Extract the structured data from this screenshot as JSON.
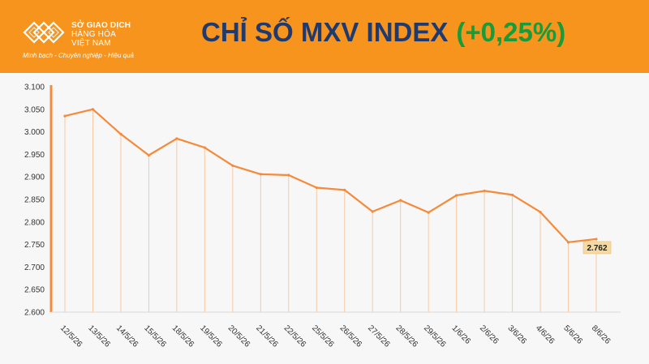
{
  "brand": {
    "name_line1": "SỞ GIAO DỊCH",
    "name_line2": "HÀNG HÓA",
    "name_line3": "VIỆT NAM",
    "slogan": "Minh bạch - Chuyên nghiệp - Hiệu quả",
    "logo_icon": "mxv-logo-icon"
  },
  "header": {
    "title": "CHỈ SỐ MXV INDEX",
    "change": "(+0,25%)",
    "bg_color": "#f7941d",
    "title_color": "#1f3a6e",
    "change_color": "#1a9b3a"
  },
  "chart_data": {
    "type": "line",
    "title": "CHỈ SỐ MXV INDEX (+0,25%)",
    "xlabel": "",
    "ylabel": "",
    "categories": [
      "12/5/26",
      "13/5/26",
      "14/5/26",
      "15/5/26",
      "18/5/26",
      "19/5/26",
      "20/5/26",
      "21/5/26",
      "22/5/26",
      "25/5/26",
      "26/5/26",
      "27/5/26",
      "28/5/26",
      "29/5/26",
      "1/6/26",
      "2/6/26",
      "3/6/26",
      "4/6/26",
      "5/6/26",
      "8/6/26"
    ],
    "series": [
      {
        "values": [
          3035,
          3050,
          2995,
          2948,
          2985,
          2965,
          2925,
          2906,
          2904,
          2876,
          2871,
          2823,
          2848,
          2821,
          2859,
          2869,
          2860,
          2822,
          2755,
          2762
        ],
        "color": "#f58a3a"
      }
    ],
    "ylim": [
      2600,
      3100
    ],
    "yticks": [
      "2.600",
      "2.650",
      "2.700",
      "2.750",
      "2.800",
      "2.850",
      "2.900",
      "2.950",
      "3.000",
      "3.050",
      "3.100"
    ],
    "ytick_values": [
      2600,
      2650,
      2700,
      2750,
      2800,
      2850,
      2900,
      2950,
      3000,
      3050,
      3100
    ],
    "last_label": "2.762",
    "last_label_color": "#f5d9a0",
    "grid": false,
    "drop_lines": true,
    "legend": "none"
  }
}
